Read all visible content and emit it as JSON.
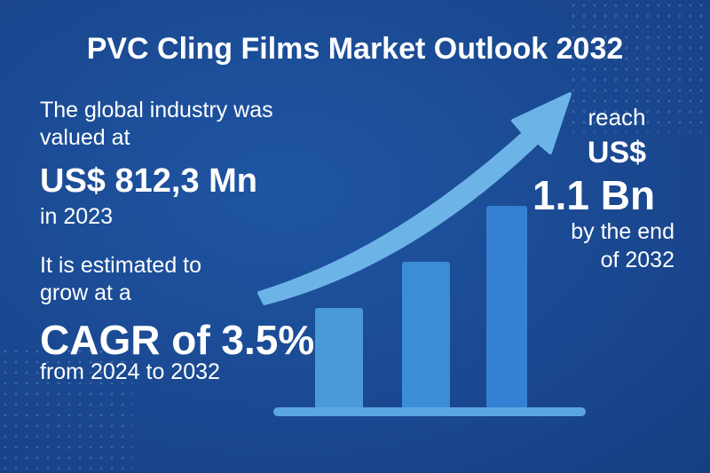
{
  "title": "PVC Cling Films Market Outlook 2032",
  "left": {
    "line1": "The global industry was",
    "line2": "valued at",
    "value": "US$ 812,3 Mn",
    "year": "in 2023",
    "line3": "It is estimated to",
    "line4": "grow at a",
    "cagr": "CAGR of 3.5%",
    "period": "from 2024 to 2032"
  },
  "right": {
    "reach": "reach",
    "currency": "US$",
    "value": "1.1 Bn",
    "by": "by the end",
    "year": "of 2032"
  },
  "colors": {
    "background": "#1b4a93",
    "arrow": "#6cb4e8",
    "bar1": "#4a9ad8",
    "bar2": "#3b8ed6",
    "bar3": "#3580d2",
    "baseline": "#5aa6e0"
  }
}
